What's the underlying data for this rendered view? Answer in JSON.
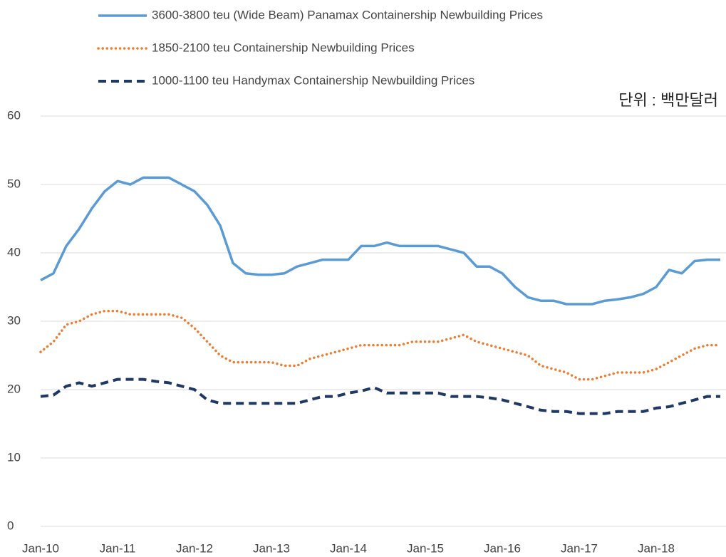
{
  "chart_data": {
    "type": "line",
    "annotation": "단위 : 백만달러",
    "categories": [
      "Jan-10",
      null,
      null,
      null,
      null,
      null,
      "Jan-11",
      null,
      null,
      null,
      null,
      null,
      "Jan-12",
      null,
      null,
      null,
      null,
      null,
      "Jan-13",
      null,
      null,
      null,
      null,
      null,
      "Jan-14",
      null,
      null,
      null,
      null,
      null,
      "Jan-15",
      null,
      null,
      null,
      null,
      null,
      "Jan-16",
      null,
      null,
      null,
      null,
      null,
      "Jan-17",
      null,
      null,
      null,
      null,
      null,
      "Jan-18",
      null,
      null,
      null,
      null,
      null
    ],
    "series": [
      {
        "name": "3600-3800 teu (Wide Beam) Panamax Containership Newbuilding Prices",
        "color": "#5b9bd5",
        "style": "solid",
        "values": [
          36,
          37,
          41,
          43.5,
          46.5,
          49,
          50.5,
          50,
          51,
          51,
          51,
          50,
          49,
          47,
          44,
          38.5,
          37,
          36.8,
          36.8,
          37,
          38,
          38.5,
          39,
          39,
          39,
          41,
          41,
          41.5,
          41,
          41,
          41,
          41,
          40.5,
          40,
          38,
          38,
          37,
          35,
          33.5,
          33,
          33,
          32.5,
          32.5,
          32.5,
          33,
          33.2,
          33.5,
          34,
          35,
          37.5,
          37,
          38.8,
          39,
          39
        ]
      },
      {
        "name": "1850-2100 teu  Containership Newbuilding Prices",
        "color": "#ed7d31",
        "style": "dotted",
        "values": [
          25.5,
          27,
          29.5,
          30,
          31,
          31.5,
          31.5,
          31,
          31,
          31,
          31,
          30.5,
          29,
          27,
          25,
          24,
          24,
          24,
          24,
          23.5,
          23.5,
          24.5,
          25,
          25.5,
          26,
          26.5,
          26.5,
          26.5,
          26.5,
          27,
          27,
          27,
          27.5,
          28,
          27,
          26.5,
          26,
          25.5,
          25,
          23.5,
          23,
          22.5,
          21.5,
          21.5,
          22,
          22.5,
          22.5,
          22.5,
          23,
          24,
          25,
          26,
          26.5,
          26.5
        ]
      },
      {
        "name": "1000-1100 teu Handymax Containership Newbuilding Prices",
        "color": "#1f3864",
        "style": "dashed",
        "values": [
          19,
          19.2,
          20.5,
          21,
          20.5,
          21,
          21.5,
          21.5,
          21.5,
          21.2,
          21,
          20.5,
          20,
          18.5,
          18,
          18,
          18,
          18,
          18,
          18,
          18,
          18.5,
          19,
          19,
          19.5,
          19.8,
          20.3,
          19.5,
          19.5,
          19.5,
          19.5,
          19.5,
          19,
          19,
          19,
          18.8,
          18.5,
          18,
          17.5,
          17,
          16.8,
          16.8,
          16.5,
          16.5,
          16.5,
          16.8,
          16.8,
          16.8,
          17.3,
          17.5,
          18,
          18.5,
          19,
          19
        ]
      }
    ],
    "ylim": [
      0,
      60
    ],
    "yticks": [
      0,
      10,
      20,
      30,
      40,
      50,
      60
    ],
    "grid": true
  }
}
